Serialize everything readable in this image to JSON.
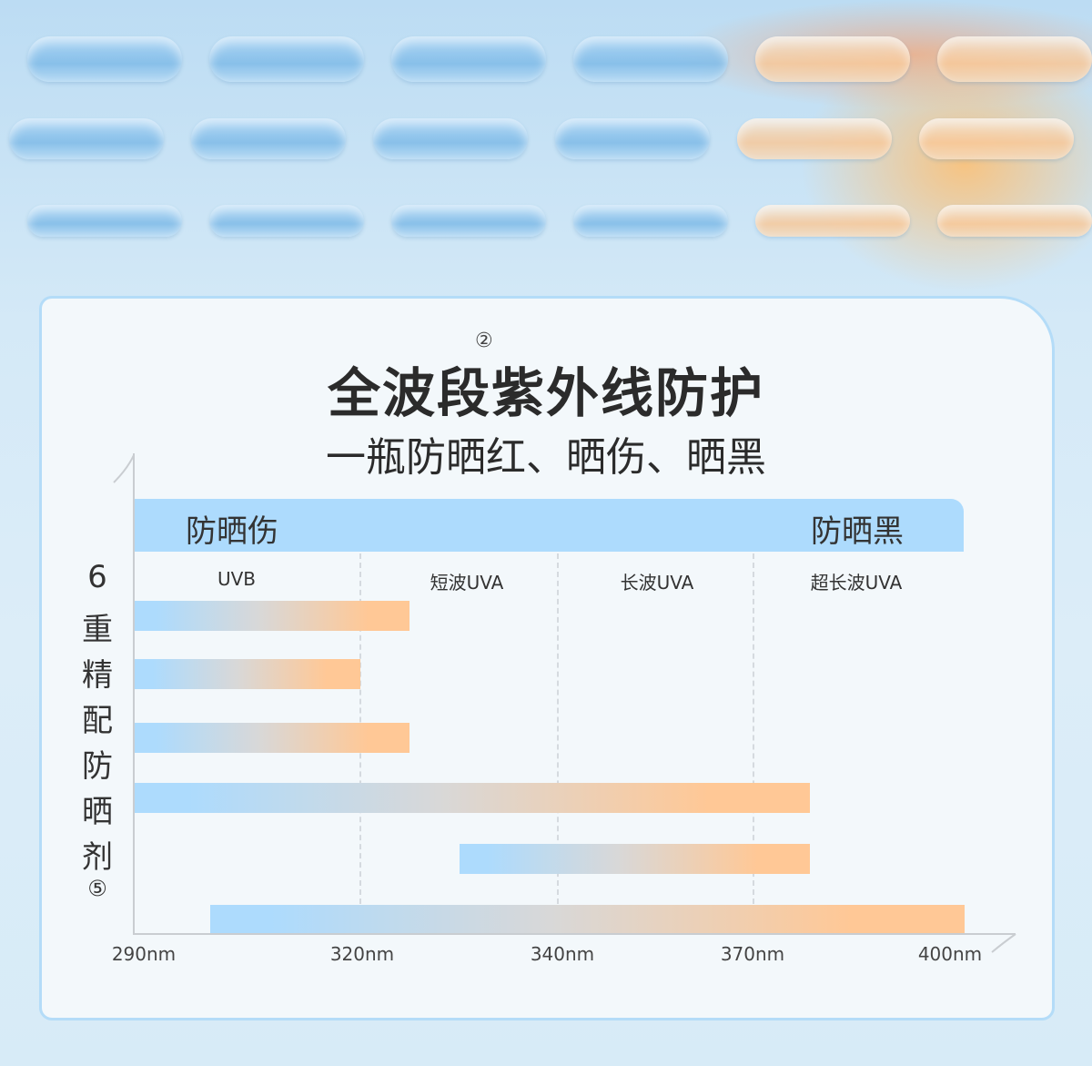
{
  "title": "全波段紫外线防护",
  "title_note": "②",
  "subtitle": "一瓶防晒红、晒伤、晒黑",
  "band": {
    "left": "防晒伤",
    "right": "防晒黑"
  },
  "side_label": {
    "chars": [
      "6",
      "重",
      "精",
      "配",
      "防",
      "晒",
      "剂"
    ],
    "note": "⑤"
  },
  "colors": {
    "band": "#addbfd",
    "bar_start": "#addbfd",
    "bar_end": "#ffc896",
    "card_border": "#b4dcf8"
  },
  "chart_data": {
    "type": "bar",
    "orientation": "horizontal-range",
    "regions": [
      "UVB",
      "短波UVA",
      "长波UVA",
      "超长波UVA"
    ],
    "x_ticks": [
      "290nm",
      "320nm",
      "340nm",
      "370nm",
      "400nm"
    ],
    "x_tick_values": [
      290,
      320,
      340,
      370,
      400
    ],
    "xlim": [
      290,
      400
    ],
    "grid": "dashed vertical at 320, 340, 370",
    "bars": [
      {
        "start": 290,
        "end": 325
      },
      {
        "start": 290,
        "end": 320
      },
      {
        "start": 290,
        "end": 325
      },
      {
        "start": 290,
        "end": 378
      },
      {
        "start": 330,
        "end": 378
      },
      {
        "start": 300,
        "end": 400
      }
    ]
  }
}
